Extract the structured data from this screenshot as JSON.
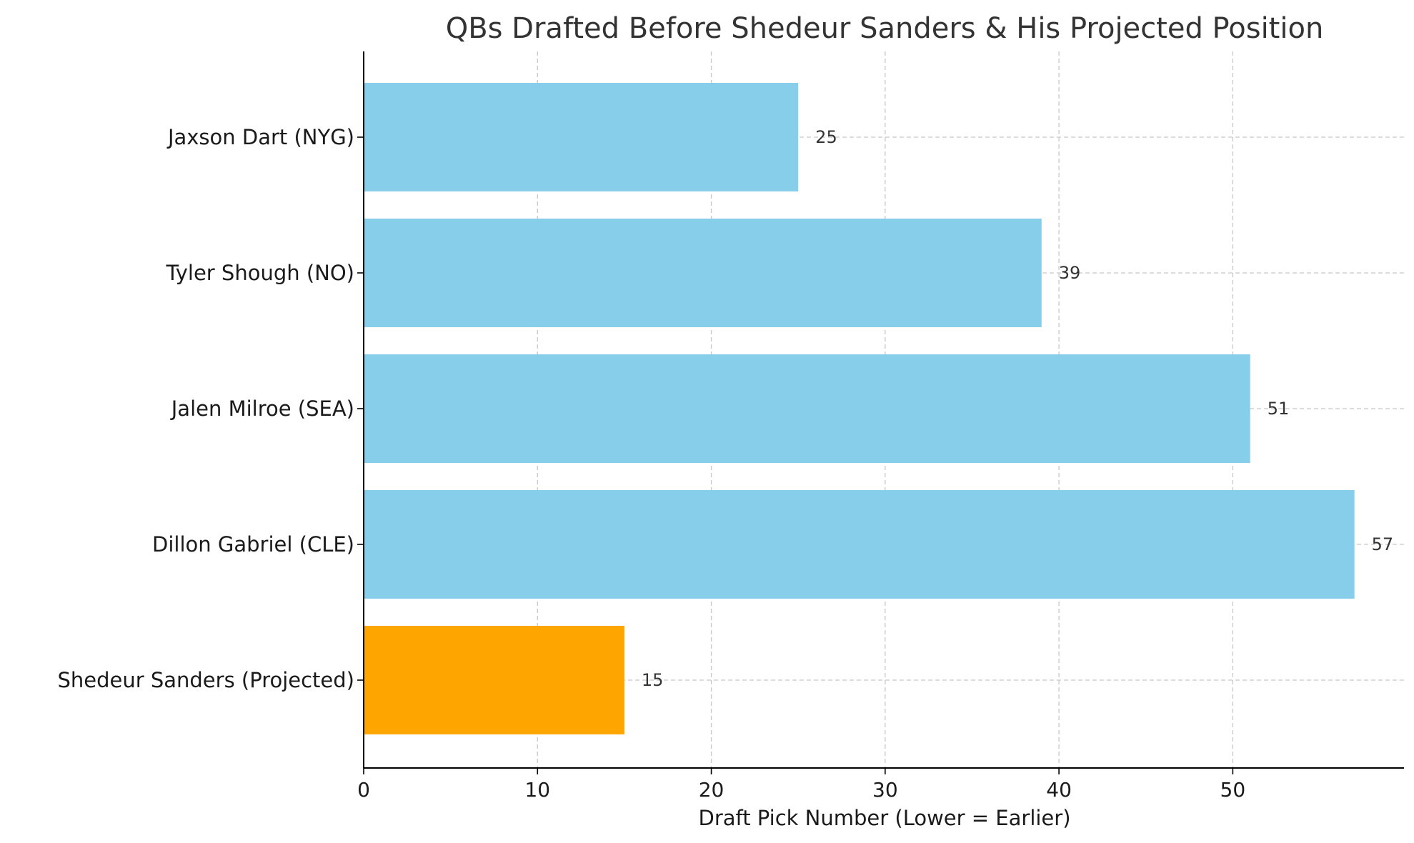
{
  "chart_data": {
    "type": "bar",
    "orientation": "horizontal",
    "title": "QBs Drafted Before Shedeur Sanders & His Projected Position",
    "xlabel": "Draft Pick Number (Lower = Earlier)",
    "ylabel": "",
    "xlim": [
      0,
      59.85
    ],
    "xticks": [
      0,
      10,
      20,
      30,
      40,
      50
    ],
    "grid": true,
    "categories": [
      "Jaxson Dart (NYG)",
      "Tyler Shough (NO)",
      "Jalen Milroe (SEA)",
      "Dillon Gabriel (CLE)",
      "Shedeur Sanders (Projected)"
    ],
    "values": [
      25,
      39,
      51,
      57,
      15
    ],
    "colors": [
      "#87CEEB",
      "#87CEEB",
      "#87CEEB",
      "#87CEEB",
      "#FFA500"
    ]
  }
}
